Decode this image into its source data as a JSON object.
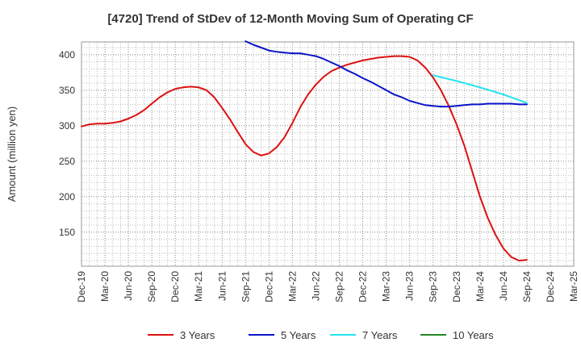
{
  "chart_data": {
    "type": "line",
    "title": "[4720]  Trend of StDev of 12-Month Moving Sum of Operating CF",
    "ylabel": "Amount (million yen)",
    "xlabel": "",
    "ylim": [
      102,
      418
    ],
    "yticks": [
      150,
      200,
      250,
      300,
      350,
      400
    ],
    "xlim": [
      "2019-12",
      "2025-03"
    ],
    "xticks": [
      "Dec-19",
      "Mar-20",
      "Jun-20",
      "Sep-20",
      "Dec-20",
      "Mar-21",
      "Jun-21",
      "Sep-21",
      "Dec-21",
      "Mar-22",
      "Jun-22",
      "Sep-22",
      "Dec-22",
      "Mar-23",
      "Jun-23",
      "Sep-23",
      "Dec-23",
      "Mar-24",
      "Jun-24",
      "Sep-24",
      "Dec-24",
      "Mar-25"
    ],
    "grid": true,
    "legend_position": "bottom",
    "series": [
      {
        "name": "3 Years",
        "color": "#dd1111",
        "points": [
          [
            "2019-12",
            299
          ],
          [
            "2020-01",
            302
          ],
          [
            "2020-02",
            303
          ],
          [
            "2020-03",
            303
          ],
          [
            "2020-04",
            304
          ],
          [
            "2020-05",
            306
          ],
          [
            "2020-06",
            310
          ],
          [
            "2020-07",
            315
          ],
          [
            "2020-08",
            322
          ],
          [
            "2020-09",
            331
          ],
          [
            "2020-10",
            340
          ],
          [
            "2020-11",
            347
          ],
          [
            "2020-12",
            352
          ],
          [
            "2021-01",
            354
          ],
          [
            "2021-02",
            355
          ],
          [
            "2021-03",
            354
          ],
          [
            "2021-04",
            350
          ],
          [
            "2021-05",
            340
          ],
          [
            "2021-06",
            325
          ],
          [
            "2021-07",
            309
          ],
          [
            "2021-08",
            291
          ],
          [
            "2021-09",
            274
          ],
          [
            "2021-10",
            263
          ],
          [
            "2021-11",
            258
          ],
          [
            "2021-12",
            261
          ],
          [
            "2022-01",
            270
          ],
          [
            "2022-02",
            284
          ],
          [
            "2022-03",
            304
          ],
          [
            "2022-04",
            326
          ],
          [
            "2022-05",
            344
          ],
          [
            "2022-06",
            358
          ],
          [
            "2022-07",
            369
          ],
          [
            "2022-08",
            377
          ],
          [
            "2022-09",
            382
          ],
          [
            "2022-10",
            386
          ],
          [
            "2022-11",
            389
          ],
          [
            "2022-12",
            392
          ],
          [
            "2023-01",
            394
          ],
          [
            "2023-02",
            396
          ],
          [
            "2023-03",
            397
          ],
          [
            "2023-04",
            398
          ],
          [
            "2023-05",
            398
          ],
          [
            "2023-06",
            397
          ],
          [
            "2023-07",
            392
          ],
          [
            "2023-08",
            382
          ],
          [
            "2023-09",
            368
          ],
          [
            "2023-10",
            350
          ],
          [
            "2023-11",
            328
          ],
          [
            "2023-12",
            302
          ],
          [
            "2024-01",
            272
          ],
          [
            "2024-02",
            236
          ],
          [
            "2024-03",
            200
          ],
          [
            "2024-04",
            170
          ],
          [
            "2024-05",
            146
          ],
          [
            "2024-06",
            127
          ],
          [
            "2024-07",
            115
          ],
          [
            "2024-08",
            110
          ],
          [
            "2024-09",
            111
          ]
        ]
      },
      {
        "name": "5 Years",
        "color": "#0a14c8",
        "points": [
          [
            "2021-09",
            419
          ],
          [
            "2021-10",
            414
          ],
          [
            "2021-11",
            410
          ],
          [
            "2021-12",
            406
          ],
          [
            "2022-01",
            404
          ],
          [
            "2022-02",
            403
          ],
          [
            "2022-03",
            402
          ],
          [
            "2022-04",
            402
          ],
          [
            "2022-05",
            400
          ],
          [
            "2022-06",
            398
          ],
          [
            "2022-07",
            394
          ],
          [
            "2022-08",
            389
          ],
          [
            "2022-09",
            384
          ],
          [
            "2022-10",
            378
          ],
          [
            "2022-11",
            373
          ],
          [
            "2022-12",
            367
          ],
          [
            "2023-01",
            362
          ],
          [
            "2023-02",
            356
          ],
          [
            "2023-03",
            350
          ],
          [
            "2023-04",
            344
          ],
          [
            "2023-05",
            340
          ],
          [
            "2023-06",
            335
          ],
          [
            "2023-07",
            332
          ],
          [
            "2023-08",
            329
          ],
          [
            "2023-09",
            328
          ],
          [
            "2023-10",
            327
          ],
          [
            "2023-11",
            327
          ],
          [
            "2023-12",
            328
          ],
          [
            "2024-01",
            329
          ],
          [
            "2024-02",
            330
          ],
          [
            "2024-03",
            330
          ],
          [
            "2024-04",
            331
          ],
          [
            "2024-05",
            331
          ],
          [
            "2024-06",
            331
          ],
          [
            "2024-07",
            331
          ],
          [
            "2024-08",
            330
          ],
          [
            "2024-09",
            330
          ]
        ]
      },
      {
        "name": "7 Years",
        "color": "#22e4ee",
        "points": [
          [
            "2023-09",
            371
          ],
          [
            "2023-12",
            363
          ],
          [
            "2024-03",
            354
          ],
          [
            "2024-06",
            344
          ],
          [
            "2024-09",
            332
          ]
        ]
      },
      {
        "name": "10 Years",
        "color": "#228822",
        "points": []
      }
    ]
  }
}
